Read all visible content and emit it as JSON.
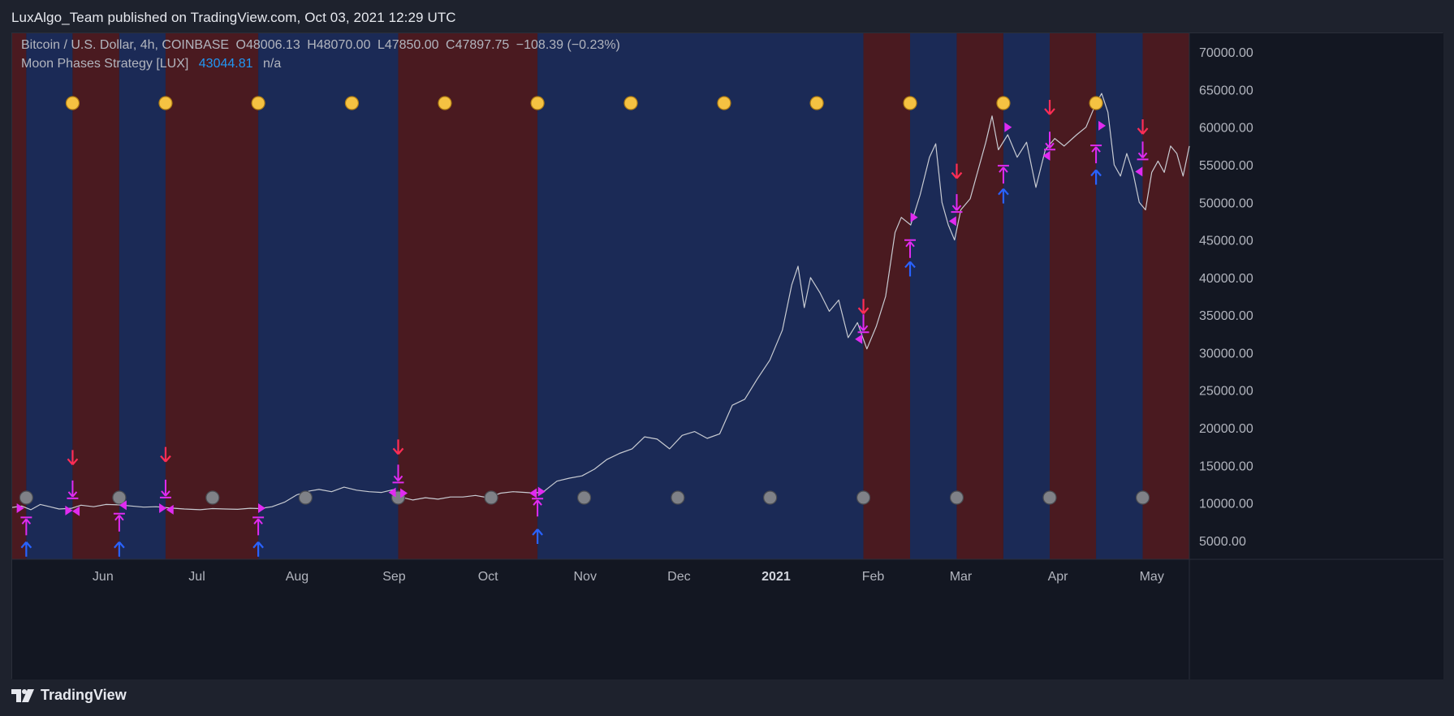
{
  "header": {
    "published_text": "LuxAlgo_Team published on TradingView.com, Oct 03, 2021 12:29 UTC"
  },
  "legend": {
    "symbol": "Bitcoin / U.S. Dollar, 4h, COINBASE",
    "open": "O48006.13",
    "high": "H48070.00",
    "low": "L47850.00",
    "close": "C47897.75",
    "change": "−108.39 (−0.23%)",
    "indicator_name": "Moon Phases Strategy [LUX]",
    "indicator_value": "43044.81",
    "indicator_na": "n/a"
  },
  "footer": {
    "brand": "TradingView"
  },
  "colors": {
    "background": "#1e222d",
    "plot_background": "#131722",
    "bull_zone": "#1b2a56",
    "bear_zone": "#4a1a20",
    "price_line": "#c8cbd2",
    "full_moon": "#f5c242",
    "new_moon": "#7f8187",
    "buy_arrow": "#2962ff",
    "sell_arrow": "#ff2d55",
    "strategy_marker": "#e02bf0",
    "indicator_value": "#2196f3"
  },
  "chart_data": {
    "type": "line",
    "title": "Bitcoin / U.S. Dollar, 4h, COINBASE",
    "y_axis": {
      "range": [
        2500,
        72500
      ],
      "ticks": [
        "5000.00",
        "10000.00",
        "15000.00",
        "20000.00",
        "25000.00",
        "30000.00",
        "35000.00",
        "40000.00",
        "45000.00",
        "50000.00",
        "55000.00",
        "60000.00",
        "65000.00",
        "70000.00"
      ]
    },
    "x_axis": {
      "range_days": [
        0,
        376
      ],
      "tick_labels": [
        "Jun",
        "Jul",
        "Aug",
        "Sep",
        "Oct",
        "Nov",
        "Dec",
        "2021",
        "Feb",
        "Mar",
        "Apr",
        "May"
      ],
      "tick_days": [
        29,
        59,
        91,
        122,
        152,
        183,
        213,
        244,
        275,
        303,
        334,
        364
      ],
      "bold_labels": [
        "2021"
      ]
    },
    "zones": [
      {
        "start": 0,
        "end": 4.5,
        "type": "bear"
      },
      {
        "start": 4.5,
        "end": 19.3,
        "type": "bull"
      },
      {
        "start": 19.3,
        "end": 34.2,
        "type": "bear"
      },
      {
        "start": 34.2,
        "end": 49.0,
        "type": "bull"
      },
      {
        "start": 49.0,
        "end": 78.6,
        "type": "bear"
      },
      {
        "start": 78.6,
        "end": 123.3,
        "type": "bull"
      },
      {
        "start": 123.3,
        "end": 167.8,
        "type": "bear"
      },
      {
        "start": 167.8,
        "end": 271.9,
        "type": "bull"
      },
      {
        "start": 271.9,
        "end": 286.8,
        "type": "bear"
      },
      {
        "start": 286.8,
        "end": 301.7,
        "type": "bull"
      },
      {
        "start": 301.7,
        "end": 316.6,
        "type": "bear"
      },
      {
        "start": 316.6,
        "end": 331.4,
        "type": "bull"
      },
      {
        "start": 331.4,
        "end": 346.2,
        "type": "bear"
      },
      {
        "start": 346.2,
        "end": 361.1,
        "type": "bull"
      },
      {
        "start": 361.1,
        "end": 376,
        "type": "bear"
      }
    ],
    "full_moons": [
      19.3,
      49.0,
      78.6,
      108.5,
      138.2,
      167.8,
      197.6,
      227.4,
      257.0,
      286.8,
      316.6,
      346.2
    ],
    "new_moons": [
      4.5,
      34.2,
      64.0,
      93.7,
      123.3,
      153.0,
      182.7,
      212.6,
      242.1,
      271.9,
      301.7,
      331.4,
      361.1
    ],
    "price_series": [
      [
        0,
        9400
      ],
      [
        3,
        9600
      ],
      [
        6,
        9100
      ],
      [
        9,
        9800
      ],
      [
        12,
        9500
      ],
      [
        15,
        9200
      ],
      [
        19,
        9300
      ],
      [
        22,
        9700
      ],
      [
        26,
        9500
      ],
      [
        30,
        9800
      ],
      [
        34,
        9750
      ],
      [
        38,
        9600
      ],
      [
        42,
        9450
      ],
      [
        46,
        9500
      ],
      [
        50,
        9350
      ],
      [
        55,
        9200
      ],
      [
        60,
        9100
      ],
      [
        64,
        9250
      ],
      [
        68,
        9200
      ],
      [
        72,
        9150
      ],
      [
        76,
        9300
      ],
      [
        79,
        9250
      ],
      [
        83,
        9500
      ],
      [
        87,
        10100
      ],
      [
        91,
        11100
      ],
      [
        95,
        11600
      ],
      [
        98,
        11800
      ],
      [
        102,
        11500
      ],
      [
        106,
        12100
      ],
      [
        110,
        11700
      ],
      [
        114,
        11500
      ],
      [
        118,
        11400
      ],
      [
        122,
        11800
      ],
      [
        124,
        10800
      ],
      [
        128,
        10400
      ],
      [
        132,
        10700
      ],
      [
        136,
        10500
      ],
      [
        140,
        10800
      ],
      [
        144,
        10800
      ],
      [
        148,
        11000
      ],
      [
        152,
        10700
      ],
      [
        156,
        11300
      ],
      [
        160,
        11500
      ],
      [
        164,
        11400
      ],
      [
        167,
        11300
      ],
      [
        170,
        11600
      ],
      [
        174,
        12900
      ],
      [
        178,
        13300
      ],
      [
        182,
        13600
      ],
      [
        186,
        14500
      ],
      [
        190,
        15800
      ],
      [
        194,
        16600
      ],
      [
        198,
        17200
      ],
      [
        202,
        18800
      ],
      [
        206,
        18500
      ],
      [
        210,
        17200
      ],
      [
        214,
        19000
      ],
      [
        218,
        19500
      ],
      [
        222,
        18600
      ],
      [
        226,
        19200
      ],
      [
        230,
        23000
      ],
      [
        234,
        23800
      ],
      [
        238,
        26500
      ],
      [
        242,
        29000
      ],
      [
        246,
        33000
      ],
      [
        249,
        39000
      ],
      [
        251,
        41500
      ],
      [
        253,
        36000
      ],
      [
        255,
        40000
      ],
      [
        258,
        38000
      ],
      [
        261,
        35500
      ],
      [
        264,
        37000
      ],
      [
        267,
        32000
      ],
      [
        270,
        34000
      ],
      [
        273,
        30500
      ],
      [
        276,
        33500
      ],
      [
        279,
        37500
      ],
      [
        282,
        46000
      ],
      [
        284,
        48000
      ],
      [
        287,
        47000
      ],
      [
        290,
        51000
      ],
      [
        293,
        56000
      ],
      [
        295,
        57800
      ],
      [
        297,
        50000
      ],
      [
        299,
        47000
      ],
      [
        301,
        45000
      ],
      [
        303,
        49000
      ],
      [
        306,
        50500
      ],
      [
        309,
        55000
      ],
      [
        311,
        58000
      ],
      [
        313,
        61500
      ],
      [
        315,
        57000
      ],
      [
        318,
        59000
      ],
      [
        321,
        56000
      ],
      [
        324,
        58000
      ],
      [
        327,
        52000
      ],
      [
        330,
        57000
      ],
      [
        333,
        58500
      ],
      [
        336,
        57500
      ],
      [
        340,
        59000
      ],
      [
        343,
        60000
      ],
      [
        346,
        63000
      ],
      [
        348,
        64500
      ],
      [
        350,
        62000
      ],
      [
        352,
        55000
      ],
      [
        354,
        53500
      ],
      [
        356,
        56500
      ],
      [
        358,
        54000
      ],
      [
        360,
        50000
      ],
      [
        362,
        49000
      ],
      [
        364,
        54000
      ],
      [
        366,
        55500
      ],
      [
        368,
        54000
      ],
      [
        370,
        57500
      ],
      [
        372,
        56500
      ],
      [
        374,
        53500
      ],
      [
        376,
        57500
      ]
    ],
    "buy_arrows": [
      [
        4.5,
        3500
      ],
      [
        34.2,
        3500
      ],
      [
        78.6,
        3500
      ],
      [
        167.8,
        5200
      ],
      [
        286.8,
        40800
      ],
      [
        316.6,
        50500
      ],
      [
        346.2,
        53000
      ]
    ],
    "sell_arrows": [
      [
        19.3,
        16400
      ],
      [
        49.0,
        16800
      ],
      [
        123.3,
        17800
      ],
      [
        271.9,
        36500
      ],
      [
        301.7,
        54500
      ],
      [
        331.4,
        63000
      ],
      [
        361.1,
        60400
      ]
    ],
    "long_exits": [
      [
        4.5,
        7000
      ],
      [
        34.2,
        7500
      ],
      [
        78.6,
        7000
      ],
      [
        167.8,
        9500
      ],
      [
        286.8,
        43900
      ],
      [
        316.6,
        53800
      ],
      [
        346.2,
        56500
      ]
    ],
    "short_exits": [
      [
        19.3,
        11700
      ],
      [
        49.0,
        11800
      ],
      [
        123.3,
        13800
      ],
      [
        271.9,
        33800
      ],
      [
        301.7,
        49800
      ],
      [
        331.4,
        58100
      ],
      [
        361.1,
        56800
      ]
    ],
    "entry_long_marks": [
      [
        2.5,
        9300
      ],
      [
        18.0,
        9000
      ],
      [
        48.0,
        9300
      ],
      [
        79.6,
        9300
      ],
      [
        125.0,
        11300
      ],
      [
        169.0,
        11500
      ],
      [
        288.0,
        48000
      ],
      [
        318.0,
        60000
      ],
      [
        348.0,
        60200
      ]
    ],
    "entry_short_marks": [
      [
        20.5,
        8900
      ],
      [
        35.5,
        9700
      ],
      [
        50.5,
        9100
      ],
      [
        121.5,
        11400
      ],
      [
        166.5,
        11300
      ],
      [
        270.5,
        31800
      ],
      [
        300.5,
        47500
      ],
      [
        330.5,
        56200
      ],
      [
        360.0,
        54100
      ]
    ]
  }
}
